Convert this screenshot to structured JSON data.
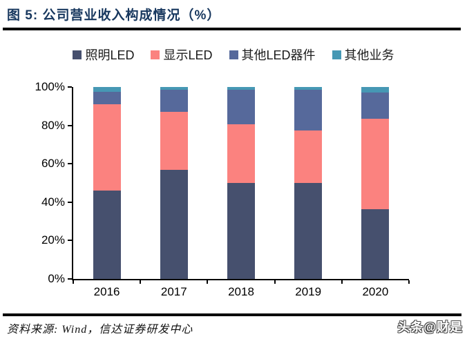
{
  "header": {
    "title": "图 5:  公司营业收入构成情况（%）",
    "title_color": "#17375e"
  },
  "footer": {
    "source": "资料来源: Wind，信达证券研发中心",
    "watermark": "头条@财是"
  },
  "chart_data": {
    "type": "bar",
    "stacked": true,
    "title": "公司营业收入构成情况（%）",
    "categories": [
      "2016",
      "2017",
      "2018",
      "2019",
      "2020"
    ],
    "series": [
      {
        "name": "照明LED",
        "color": "#46506e",
        "values": [
          46,
          57,
          50,
          50,
          36.5
        ]
      },
      {
        "name": "显示LED",
        "color": "#fb827f",
        "values": [
          45,
          30,
          30.5,
          27.5,
          47
        ]
      },
      {
        "name": "其他LED器件",
        "color": "#56699b",
        "values": [
          6.5,
          11.5,
          18,
          21,
          13.5
        ]
      },
      {
        "name": "其他业务",
        "color": "#4698b4",
        "values": [
          2.5,
          1.5,
          1.5,
          1.5,
          3
        ]
      }
    ],
    "xlabel": "",
    "ylabel": "",
    "ylim": [
      0,
      100
    ],
    "yticks": [
      "0%",
      "20%",
      "40%",
      "60%",
      "80%",
      "100%"
    ],
    "grid": false,
    "legend_position": "top"
  }
}
